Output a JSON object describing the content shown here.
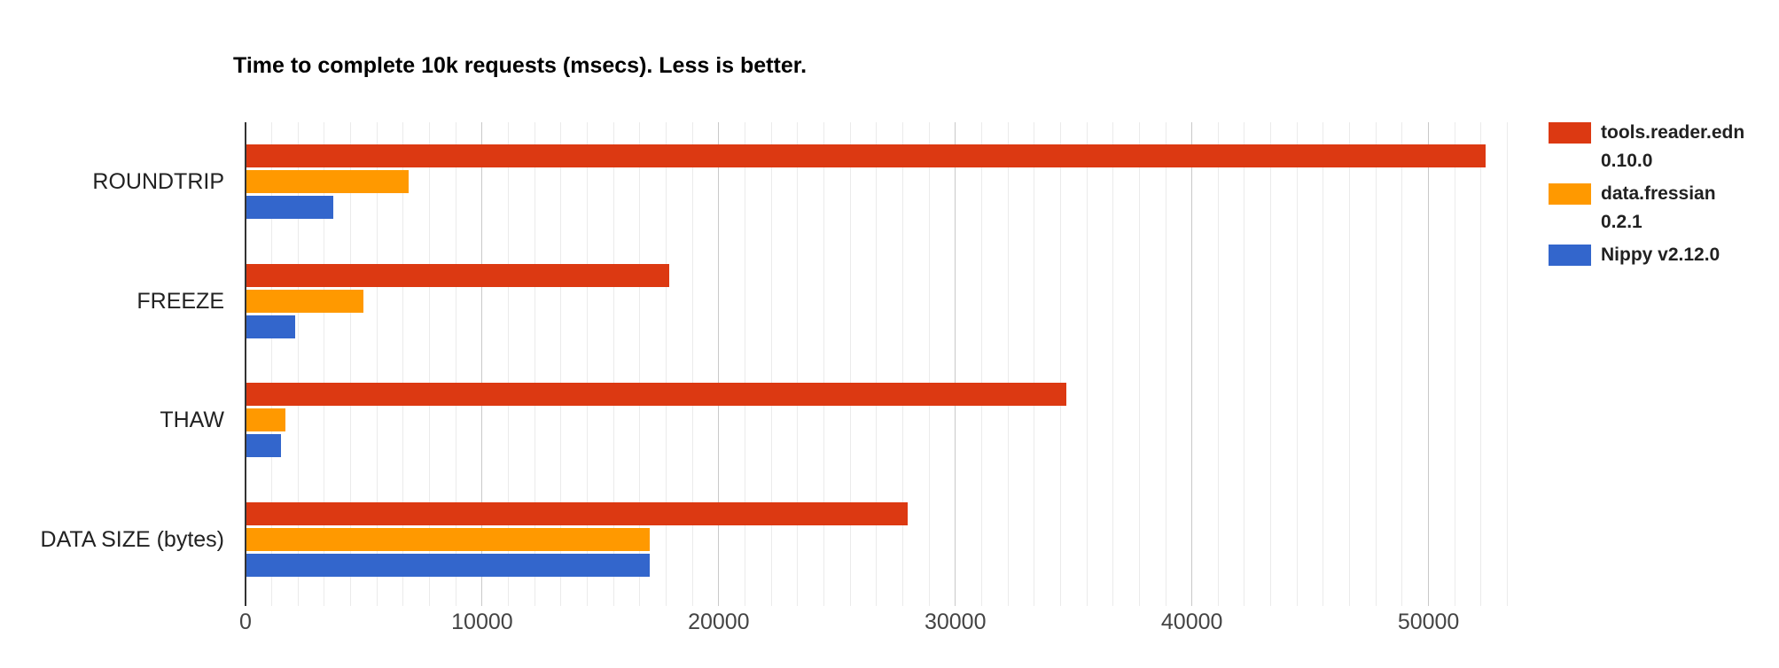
{
  "chart_data": {
    "type": "bar",
    "orientation": "horizontal",
    "title": "Time to complete 10k requests (msecs). Less is better.",
    "categories": [
      "ROUNDTRIP",
      "FREEZE",
      "THAW",
      "DATA SIZE (bytes)"
    ],
    "series": [
      {
        "name": "tools.reader.edn 0.10.0",
        "legend_lines": [
          "tools.reader.edn",
          "0.10.0"
        ],
        "color": "#dc3912",
        "values": [
          52400,
          17900,
          34700,
          28000
        ]
      },
      {
        "name": "data.fressian 0.2.1",
        "legend_lines": [
          "data.fressian",
          "0.2.1"
        ],
        "color": "#ff9900",
        "values": [
          6900,
          5000,
          1700,
          17100
        ]
      },
      {
        "name": "Nippy v2.12.0",
        "legend_lines": [
          "Nippy v2.12.0"
        ],
        "color": "#3366cc",
        "values": [
          3700,
          2100,
          1500,
          17100
        ]
      }
    ],
    "x_axis": {
      "ticks": [
        0,
        10000,
        20000,
        30000,
        40000,
        50000
      ],
      "max": 53500,
      "minor_divisions_per_major": 9,
      "tick_label_color": "#444444"
    },
    "grid": true,
    "legend_position": "right",
    "background_color": "#ffffff"
  }
}
